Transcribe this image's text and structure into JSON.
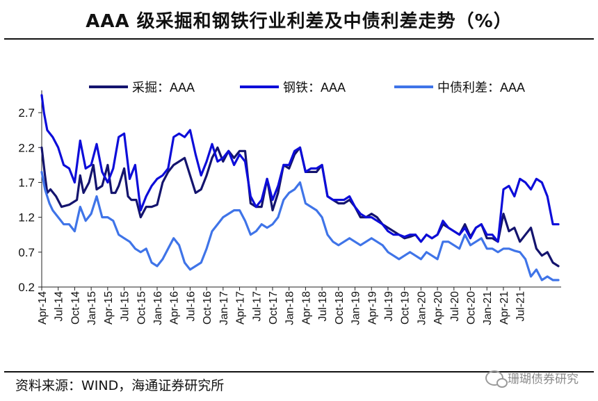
{
  "title": "AAA 级采掘和钢铁行业利差及中债利差走势（%）",
  "source": "资料来源：WIND，海通证券研究所",
  "watermark": "珊瑚债券研究",
  "chart_data": {
    "type": "line",
    "ylim": [
      0.2,
      3.0
    ],
    "yticks": [
      0.2,
      0.7,
      1.2,
      1.7,
      2.2,
      2.7
    ],
    "ytick_labels": [
      "0.2",
      "0.7",
      "1.2",
      "1.7",
      "2.2",
      "2.7"
    ],
    "x_start": "2014-04",
    "x_end": "2021-09",
    "x_tick_labels": [
      "Apr-14",
      "Jul-14",
      "Oct-14",
      "Jan-15",
      "Apr-15",
      "Jul-15",
      "Oct-15",
      "Jan-16",
      "Apr-16",
      "Jul-16",
      "Oct-16",
      "Jan-17",
      "Apr-17",
      "Jul-17",
      "Oct-17",
      "Jan-18",
      "Apr-18",
      "Jul-18",
      "Oct-18",
      "Jan-19",
      "Apr-19",
      "Jul-19",
      "Oct-19",
      "Jan-20",
      "Apr-20",
      "Jul-20",
      "Oct-20",
      "Jan-21",
      "Apr-21",
      "Jul-21"
    ],
    "legend": [
      "采掘：AAA",
      "钢铁：AAA",
      "中债利差：AAA"
    ],
    "series": [
      {
        "name": "采掘：AAA",
        "color": "#14146e",
        "width": 3.2,
        "points": [
          [
            0,
            2.2
          ],
          [
            0.6,
            1.8
          ],
          [
            1,
            1.55
          ],
          [
            1.6,
            1.6
          ],
          [
            2.6,
            1.5
          ],
          [
            3.6,
            1.35
          ],
          [
            5,
            1.38
          ],
          [
            6.4,
            1.45
          ],
          [
            7,
            1.8
          ],
          [
            7.6,
            1.55
          ],
          [
            8.6,
            1.7
          ],
          [
            9.4,
            1.95
          ],
          [
            10,
            1.6
          ],
          [
            11,
            1.65
          ],
          [
            12,
            1.95
          ],
          [
            12.7,
            1.55
          ],
          [
            13.4,
            1.55
          ],
          [
            14,
            1.65
          ],
          [
            15,
            1.9
          ],
          [
            15.7,
            1.5
          ],
          [
            16.3,
            1.45
          ],
          [
            17.2,
            1.45
          ],
          [
            18,
            1.2
          ],
          [
            19,
            1.35
          ],
          [
            20,
            1.35
          ],
          [
            21,
            1.38
          ],
          [
            22,
            1.7
          ],
          [
            23,
            1.85
          ],
          [
            24,
            1.95
          ],
          [
            25,
            2.0
          ],
          [
            26,
            2.05
          ],
          [
            27,
            1.8
          ],
          [
            28,
            1.55
          ],
          [
            29,
            1.6
          ],
          [
            30,
            1.8
          ],
          [
            31,
            2.05
          ],
          [
            32,
            2.2
          ],
          [
            33,
            2.0
          ],
          [
            34,
            2.15
          ],
          [
            35,
            2.05
          ],
          [
            36,
            2.15
          ],
          [
            37,
            2.15
          ],
          [
            38,
            1.4
          ],
          [
            39,
            1.35
          ],
          [
            40,
            1.35
          ],
          [
            41,
            1.75
          ],
          [
            42,
            1.3
          ],
          [
            43,
            1.55
          ],
          [
            44,
            1.95
          ],
          [
            45,
            1.9
          ],
          [
            46,
            2.1
          ],
          [
            47,
            2.2
          ],
          [
            48,
            1.85
          ],
          [
            49,
            1.85
          ],
          [
            50,
            1.85
          ],
          [
            51,
            1.95
          ],
          [
            52,
            1.5
          ],
          [
            53,
            1.45
          ],
          [
            54,
            1.4
          ],
          [
            55,
            1.4
          ],
          [
            56,
            1.45
          ],
          [
            57,
            1.35
          ],
          [
            58,
            1.2
          ],
          [
            59,
            1.2
          ],
          [
            60,
            1.25
          ],
          [
            61,
            1.2
          ],
          [
            62,
            1.1
          ],
          [
            63,
            1.05
          ],
          [
            64,
            1.0
          ],
          [
            65,
            0.95
          ],
          [
            66,
            0.9
          ],
          [
            67,
            0.92
          ],
          [
            68,
            0.95
          ],
          [
            69,
            0.85
          ],
          [
            70,
            0.95
          ],
          [
            71,
            0.9
          ],
          [
            72,
            0.95
          ],
          [
            73,
            1.1
          ],
          [
            74,
            1.05
          ],
          [
            75,
            1.0
          ],
          [
            76,
            0.95
          ],
          [
            77,
            1.1
          ],
          [
            78,
            0.92
          ],
          [
            79,
            1.05
          ],
          [
            80,
            1.1
          ],
          [
            81,
            0.9
          ],
          [
            82,
            0.9
          ],
          [
            83,
            0.85
          ],
          [
            84,
            1.25
          ],
          [
            85,
            1.0
          ],
          [
            86,
            1.05
          ],
          [
            87,
            0.85
          ],
          [
            88,
            0.95
          ],
          [
            89,
            1.05
          ],
          [
            90,
            0.75
          ],
          [
            91,
            0.65
          ],
          [
            92,
            0.7
          ],
          [
            93,
            0.55
          ],
          [
            94,
            0.5
          ]
        ]
      },
      {
        "name": "钢铁：AAA",
        "color": "#0d0dd9",
        "width": 3.2,
        "points": [
          [
            0,
            2.95
          ],
          [
            0.4,
            2.7
          ],
          [
            1,
            2.45
          ],
          [
            2,
            2.35
          ],
          [
            3,
            2.2
          ],
          [
            4,
            1.95
          ],
          [
            5,
            1.9
          ],
          [
            6,
            1.7
          ],
          [
            7,
            2.3
          ],
          [
            8,
            1.9
          ],
          [
            9,
            1.95
          ],
          [
            10,
            2.25
          ],
          [
            11,
            1.85
          ],
          [
            12,
            1.7
          ],
          [
            13,
            1.9
          ],
          [
            14,
            2.35
          ],
          [
            15,
            2.4
          ],
          [
            16,
            1.75
          ],
          [
            17,
            1.95
          ],
          [
            18,
            1.3
          ],
          [
            19,
            1.5
          ],
          [
            20,
            1.65
          ],
          [
            21,
            1.75
          ],
          [
            22,
            1.8
          ],
          [
            23,
            1.9
          ],
          [
            24,
            2.35
          ],
          [
            25,
            2.4
          ],
          [
            26,
            2.35
          ],
          [
            27,
            2.45
          ],
          [
            28,
            2.1
          ],
          [
            29,
            1.8
          ],
          [
            30,
            2.0
          ],
          [
            31,
            2.25
          ],
          [
            32,
            2.0
          ],
          [
            33,
            2.05
          ],
          [
            34,
            2.15
          ],
          [
            35,
            1.95
          ],
          [
            36,
            2.1
          ],
          [
            37,
            2.0
          ],
          [
            38,
            1.5
          ],
          [
            39,
            1.35
          ],
          [
            40,
            1.45
          ],
          [
            41,
            1.75
          ],
          [
            42,
            1.45
          ],
          [
            43,
            1.65
          ],
          [
            44,
            1.95
          ],
          [
            45,
            1.95
          ],
          [
            46,
            2.15
          ],
          [
            47,
            2.2
          ],
          [
            48,
            1.85
          ],
          [
            49,
            1.9
          ],
          [
            50,
            1.9
          ],
          [
            51,
            1.95
          ],
          [
            52,
            1.5
          ],
          [
            53,
            1.45
          ],
          [
            54,
            1.45
          ],
          [
            55,
            1.45
          ],
          [
            56,
            1.5
          ],
          [
            57,
            1.35
          ],
          [
            58,
            1.25
          ],
          [
            59,
            1.2
          ],
          [
            60,
            1.2
          ],
          [
            61,
            1.15
          ],
          [
            62,
            1.1
          ],
          [
            63,
            1.0
          ],
          [
            64,
            0.95
          ],
          [
            65,
            0.95
          ],
          [
            66,
            0.92
          ],
          [
            67,
            0.95
          ],
          [
            68,
            0.95
          ],
          [
            69,
            0.85
          ],
          [
            70,
            0.95
          ],
          [
            71,
            0.9
          ],
          [
            72,
            0.95
          ],
          [
            73,
            1.15
          ],
          [
            74,
            1.05
          ],
          [
            75,
            1.0
          ],
          [
            76,
            0.95
          ],
          [
            77,
            1.05
          ],
          [
            78,
            0.9
          ],
          [
            79,
            1.05
          ],
          [
            80,
            1.1
          ],
          [
            81,
            0.95
          ],
          [
            82,
            0.95
          ],
          [
            83,
            0.85
          ],
          [
            84,
            1.6
          ],
          [
            85,
            1.65
          ],
          [
            86,
            1.5
          ],
          [
            87,
            1.75
          ],
          [
            88,
            1.7
          ],
          [
            89,
            1.6
          ],
          [
            90,
            1.75
          ],
          [
            91,
            1.7
          ],
          [
            92,
            1.5
          ],
          [
            93,
            1.1
          ],
          [
            94,
            1.1
          ]
        ]
      },
      {
        "name": "中债利差：AAA",
        "color": "#3f74e8",
        "width": 3.2,
        "points": [
          [
            0,
            1.85
          ],
          [
            0.6,
            1.6
          ],
          [
            1.4,
            1.4
          ],
          [
            2,
            1.3
          ],
          [
            3,
            1.2
          ],
          [
            4,
            1.1
          ],
          [
            5,
            1.1
          ],
          [
            6,
            1.0
          ],
          [
            7,
            1.35
          ],
          [
            8,
            1.15
          ],
          [
            9,
            1.25
          ],
          [
            10,
            1.5
          ],
          [
            11,
            1.2
          ],
          [
            12,
            1.2
          ],
          [
            13,
            1.15
          ],
          [
            14,
            0.95
          ],
          [
            15,
            0.9
          ],
          [
            16,
            0.85
          ],
          [
            17,
            0.75
          ],
          [
            18,
            0.7
          ],
          [
            19,
            0.75
          ],
          [
            20,
            0.55
          ],
          [
            21,
            0.5
          ],
          [
            22,
            0.6
          ],
          [
            23,
            0.75
          ],
          [
            24,
            0.9
          ],
          [
            25,
            0.8
          ],
          [
            26,
            0.55
          ],
          [
            27,
            0.45
          ],
          [
            28,
            0.5
          ],
          [
            29,
            0.55
          ],
          [
            30,
            0.75
          ],
          [
            31,
            1.0
          ],
          [
            32,
            1.1
          ],
          [
            33,
            1.2
          ],
          [
            34,
            1.25
          ],
          [
            35,
            1.3
          ],
          [
            36,
            1.3
          ],
          [
            37,
            1.15
          ],
          [
            38,
            0.95
          ],
          [
            39,
            1.0
          ],
          [
            40,
            1.1
          ],
          [
            41,
            1.05
          ],
          [
            42,
            1.1
          ],
          [
            43,
            1.2
          ],
          [
            44,
            1.45
          ],
          [
            45,
            1.55
          ],
          [
            46,
            1.6
          ],
          [
            47,
            1.7
          ],
          [
            48,
            1.4
          ],
          [
            49,
            1.35
          ],
          [
            50,
            1.3
          ],
          [
            51,
            1.2
          ],
          [
            52,
            0.95
          ],
          [
            53,
            0.85
          ],
          [
            54,
            0.8
          ],
          [
            55,
            0.85
          ],
          [
            56,
            0.9
          ],
          [
            57,
            0.85
          ],
          [
            58,
            0.8
          ],
          [
            59,
            0.85
          ],
          [
            60,
            0.9
          ],
          [
            61,
            0.85
          ],
          [
            62,
            0.8
          ],
          [
            63,
            0.7
          ],
          [
            64,
            0.65
          ],
          [
            65,
            0.6
          ],
          [
            66,
            0.65
          ],
          [
            67,
            0.7
          ],
          [
            68,
            0.65
          ],
          [
            69,
            0.6
          ],
          [
            70,
            0.7
          ],
          [
            71,
            0.65
          ],
          [
            72,
            0.6
          ],
          [
            73,
            0.85
          ],
          [
            74,
            0.85
          ],
          [
            75,
            0.8
          ],
          [
            76,
            0.75
          ],
          [
            77,
            0.95
          ],
          [
            78,
            0.8
          ],
          [
            79,
            0.85
          ],
          [
            80,
            0.9
          ],
          [
            81,
            0.75
          ],
          [
            82,
            0.75
          ],
          [
            83,
            0.7
          ],
          [
            84,
            0.75
          ],
          [
            85,
            0.75
          ],
          [
            86,
            0.72
          ],
          [
            87,
            0.7
          ],
          [
            88,
            0.6
          ],
          [
            89,
            0.35
          ],
          [
            90,
            0.45
          ],
          [
            91,
            0.3
          ],
          [
            92,
            0.35
          ],
          [
            93,
            0.3
          ],
          [
            94,
            0.3
          ]
        ]
      }
    ]
  }
}
